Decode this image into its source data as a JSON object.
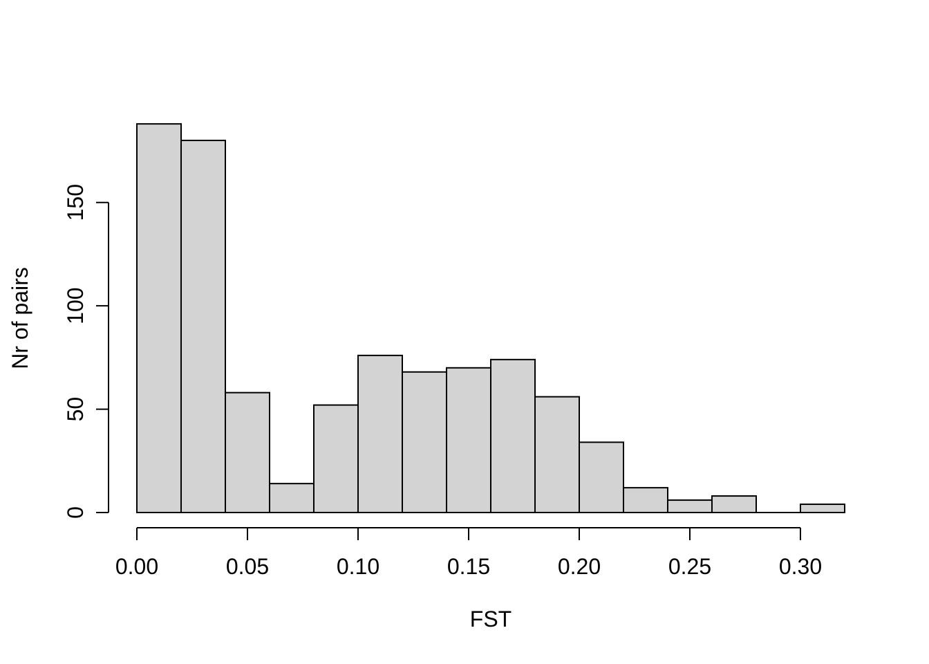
{
  "chart_data": {
    "type": "bar",
    "subtype": "histogram",
    "title": "",
    "xlabel": "FST",
    "ylabel": "Nr of pairs",
    "bin_width": 0.02,
    "bin_edges": [
      0.0,
      0.02,
      0.04,
      0.06,
      0.08,
      0.1,
      0.12,
      0.14,
      0.16,
      0.18,
      0.2,
      0.22,
      0.24,
      0.26,
      0.28,
      0.3,
      0.32
    ],
    "counts": [
      188,
      180,
      58,
      14,
      52,
      76,
      68,
      70,
      74,
      56,
      34,
      12,
      6,
      8,
      0,
      4
    ],
    "x_ticks": [
      {
        "value": 0.0,
        "label": "0.00"
      },
      {
        "value": 0.05,
        "label": "0.05"
      },
      {
        "value": 0.1,
        "label": "0.10"
      },
      {
        "value": 0.15,
        "label": "0.15"
      },
      {
        "value": 0.2,
        "label": "0.20"
      },
      {
        "value": 0.25,
        "label": "0.25"
      },
      {
        "value": 0.3,
        "label": "0.30"
      }
    ],
    "y_ticks": [
      {
        "value": 0,
        "label": "0"
      },
      {
        "value": 50,
        "label": "50"
      },
      {
        "value": 100,
        "label": "100"
      },
      {
        "value": 150,
        "label": "150"
      }
    ],
    "xlim": [
      0.0,
      0.32
    ],
    "ylim": [
      0,
      188
    ],
    "grid": "off",
    "legend": "none",
    "bar_fill": "#d3d3d3",
    "bar_stroke": "#000000",
    "axis_color": "#000000",
    "background": "#ffffff"
  }
}
